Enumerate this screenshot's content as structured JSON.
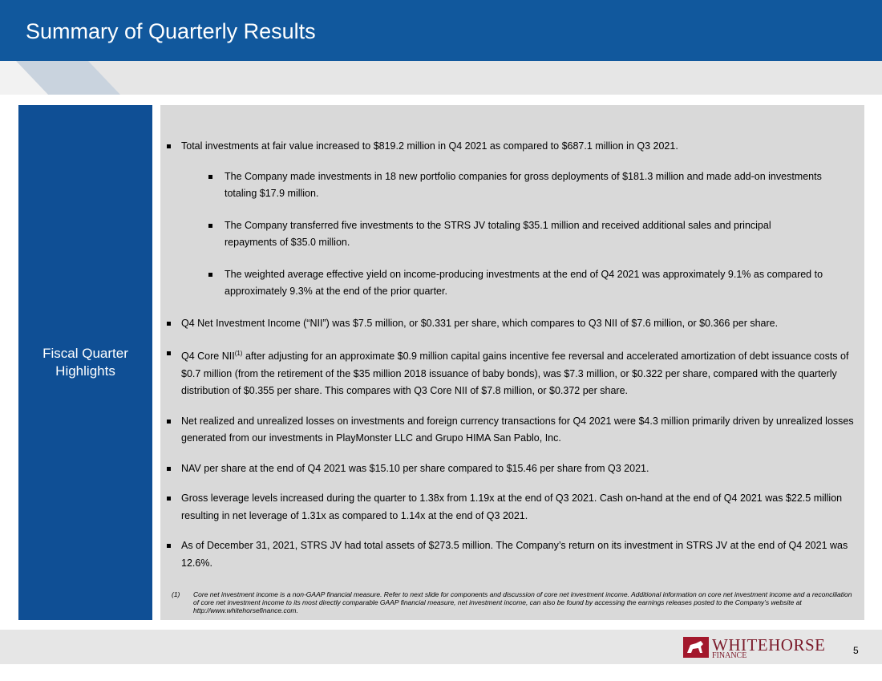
{
  "header": {
    "title": "Summary of Quarterly Results"
  },
  "sidebar": {
    "label": "Fiscal Quarter Highlights"
  },
  "bullets": [
    {
      "level": 0,
      "text": "Total investments at fair value increased to $819.2 million in Q4 2021 as compared to $687.1 million in Q3 2021."
    },
    {
      "level": 1,
      "text": "The Company made investments in 18 new portfolio companies for gross deployments of $181.3 million and made add-on investments totaling $17.9 million."
    },
    {
      "level": 1,
      "text": "The Company transferred five investments to the STRS JV totaling $35.1 million and received additional sales and principal repayments of $35.0 million."
    },
    {
      "level": 1,
      "text": "The weighted average effective yield on income-producing investments at the end of Q4 2021 was approximately 9.1% as compared to approximately 9.3% at the end of the prior quarter."
    },
    {
      "level": 0,
      "text": "Q4 Net Investment Income (“NII”) was $7.5 million, or $0.331 per share, which compares to Q3 NII of $7.6 million, or $0.366 per share."
    },
    {
      "level": 0,
      "text": "Q4 Core NII",
      "superscript": "(1)",
      "text_after": " after adjusting for an approximate $0.9 million capital gains incentive fee reversal and accelerated amortization of debt issuance costs of $0.7 million (from the retirement of the $35 million 2018 issuance of baby bonds), was $7.3 million, or $0.322 per share, compared with the quarterly distribution of $0.355 per share. This compares with Q3 Core NII of $7.8 million, or $0.372 per share."
    },
    {
      "level": 0,
      "text": "Net realized and unrealized losses on investments and foreign currency transactions for Q4 2021 were $4.3 million primarily driven by unrealized losses generated from our investments in PlayMonster LLC and Grupo HIMA San Pablo, Inc."
    },
    {
      "level": 0,
      "text": "NAV per share at the end of Q4 2021 was $15.10 per share compared to $15.46 per share from Q3 2021."
    },
    {
      "level": 0,
      "text": "Gross leverage levels increased during the quarter to 1.38x from 1.19x at the end of Q3 2021. Cash on-hand at the end of Q4 2021 was $22.5 million resulting in net leverage of 1.31x as compared to 1.14x at the end of Q3 2021."
    },
    {
      "level": 0,
      "text": "As of December 31, 2021, STRS JV had total assets of $273.5 million. The Company’s return on its investment in STRS JV at the end of Q4 2021 was 12.6%."
    }
  ],
  "footnote": {
    "marker": "(1)",
    "text": "Core net investment income is a non-GAAP financial measure. Refer to next slide for components and discussion of core net investment income. Additional information on core net investment income and a reconciliation of core net investment income to its most directly comparable GAAP financial measure, net investment income, can also be found by accessing the earnings releases posted to the Company’s website at http://www.whitehorsefinance.com."
  },
  "footer": {
    "logo_name": "WHITEHORSE",
    "logo_sub": "FINANCE",
    "page_number": "5"
  }
}
